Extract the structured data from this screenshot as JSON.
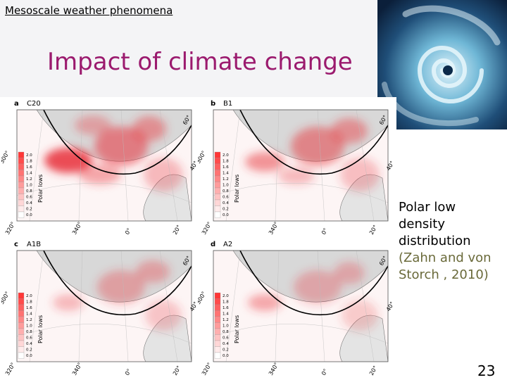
{
  "header": {
    "section_label": "Mesoscale weather phenomena",
    "title": "Impact of climate change"
  },
  "figure": {
    "panels": [
      {
        "letter": "a",
        "name": "C20"
      },
      {
        "letter": "b",
        "name": "B1"
      },
      {
        "letter": "c",
        "name": "A1B"
      },
      {
        "letter": "d",
        "name": "A2"
      }
    ],
    "colorbar_ticks": [
      "2.0",
      "1.8",
      "1.6",
      "1.4",
      "1.2",
      "1.0",
      "0.8",
      "0.6",
      "0.4",
      "0.2",
      "0.0"
    ],
    "colorbar_label": "Polar lows",
    "lon_labels": [
      "320°",
      "340°",
      "0°",
      "20°"
    ],
    "lat_labels": [
      "300°",
      "40°",
      "60°"
    ]
  },
  "caption": {
    "text": "Polar low density distribution",
    "reference": "(Zahn and von Storch , 2010)"
  },
  "footer": {
    "page_number": "23"
  }
}
